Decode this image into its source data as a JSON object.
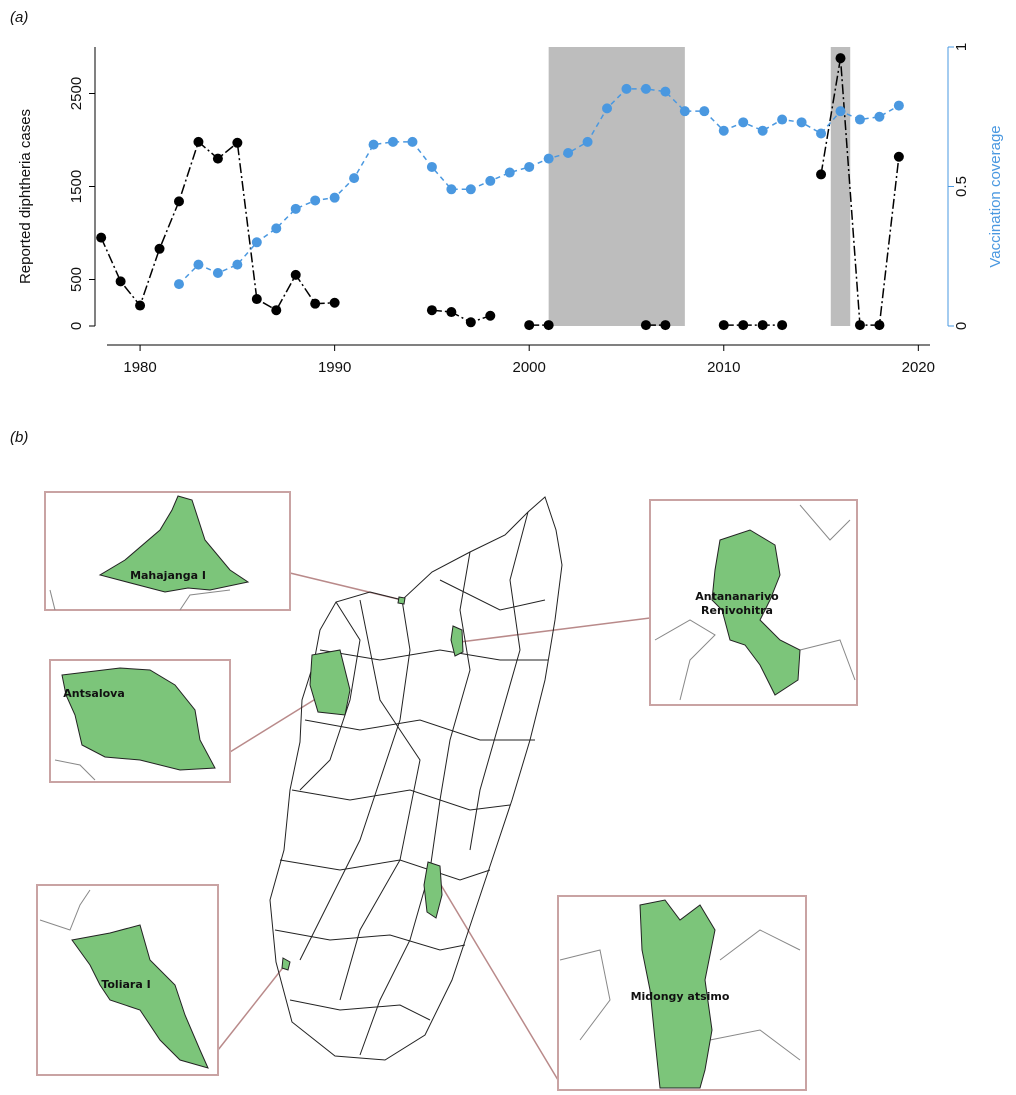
{
  "chart_data": {
    "type": "line",
    "panel_label": "(a)",
    "y_label": "Reported diphtheria cases",
    "y2_label": "Vaccination coverage",
    "x": [
      1978,
      1979,
      1980,
      1981,
      1982,
      1983,
      1984,
      1985,
      1986,
      1987,
      1988,
      1989,
      1990,
      1991,
      1992,
      1993,
      1994,
      1995,
      1996,
      1997,
      1998,
      1999,
      2000,
      2001,
      2002,
      2003,
      2004,
      2005,
      2006,
      2007,
      2008,
      2009,
      2010,
      2011,
      2012,
      2013,
      2014,
      2015,
      2016,
      2017,
      2018,
      2019
    ],
    "series": [
      {
        "name": "Reported diphtheria cases",
        "color": "#000000",
        "values": [
          950,
          480,
          220,
          830,
          1340,
          1980,
          1800,
          1970,
          290,
          170,
          550,
          240,
          250,
          null,
          null,
          null,
          null,
          170,
          150,
          40,
          110,
          null,
          10,
          10,
          null,
          null,
          null,
          null,
          10,
          10,
          null,
          null,
          10,
          10,
          10,
          10,
          null,
          1630,
          2880,
          10,
          10,
          1820
        ]
      },
      {
        "name": "Vaccination coverage",
        "color": "#4a98e0",
        "axis": "y2",
        "values": [
          null,
          null,
          null,
          null,
          0.15,
          0.22,
          0.19,
          0.22,
          0.3,
          0.35,
          0.42,
          0.45,
          0.46,
          0.53,
          0.65,
          0.66,
          0.66,
          0.57,
          0.49,
          0.49,
          0.52,
          0.55,
          0.57,
          0.6,
          0.62,
          0.66,
          0.78,
          0.85,
          0.85,
          0.84,
          0.77,
          0.77,
          0.7,
          0.73,
          0.7,
          0.74,
          0.73,
          0.69,
          0.77,
          0.74,
          0.75,
          0.79
        ]
      }
    ],
    "shaded": [
      [
        2001,
        2008
      ],
      [
        2015.5,
        2016.5
      ]
    ],
    "shade_color": "#bdbdbd",
    "xlim": [
      1978.3,
      2020.6
    ],
    "xticks": [
      1980,
      1990,
      2000,
      2010,
      2020
    ],
    "ylim": [
      0,
      3000
    ],
    "yticks": [
      0,
      500,
      1500,
      2500
    ],
    "y2lim": [
      0,
      1
    ],
    "y2ticks": [
      0,
      0.5,
      1
    ]
  },
  "map": {
    "panel_label": "(b)",
    "insets": [
      {
        "label": [
          "Mahajanga I"
        ]
      },
      {
        "label": [
          "Antsalova"
        ]
      },
      {
        "label": [
          "Toliara I"
        ]
      },
      {
        "label": [
          "Antananarivo",
          "Renivohitra"
        ]
      },
      {
        "label": [
          "Midongy atsimo"
        ]
      }
    ]
  }
}
